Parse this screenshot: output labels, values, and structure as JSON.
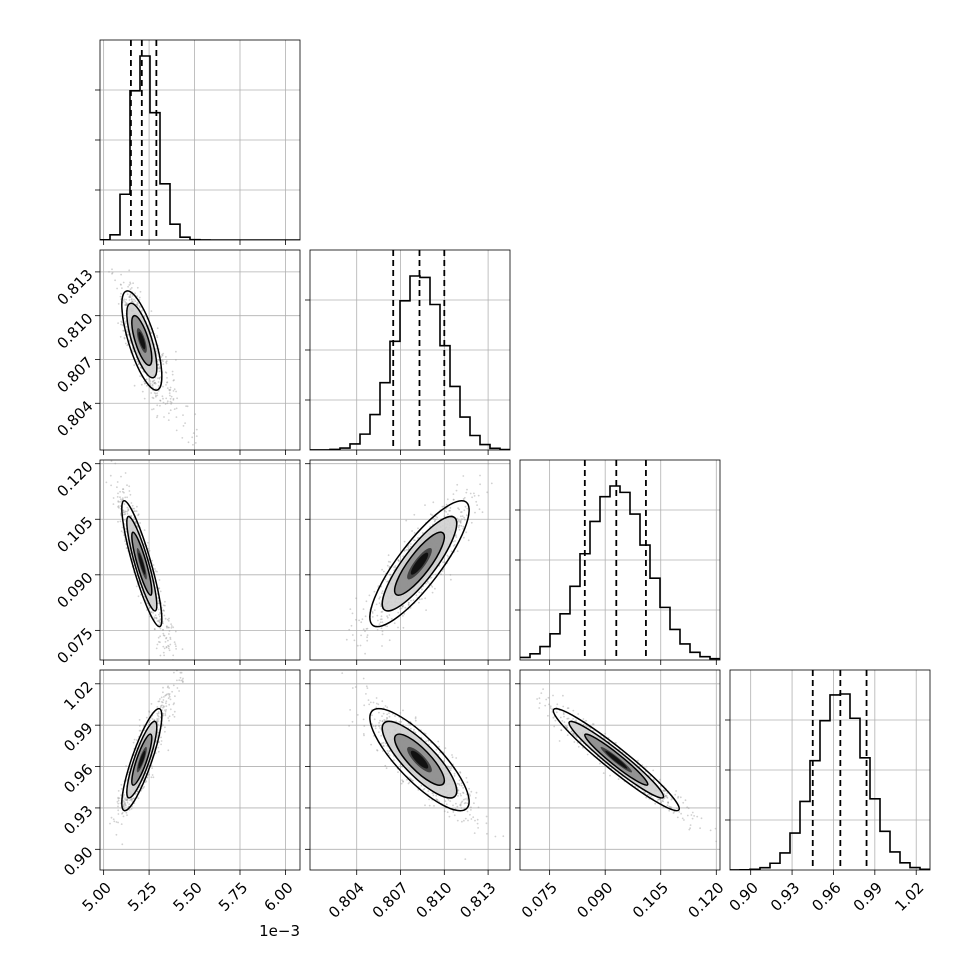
{
  "chart_data": {
    "type": "corner",
    "title": "",
    "parameters": [
      {
        "id": "p0",
        "label": "",
        "range": [
          4.98,
          6.08
        ],
        "ticks": [
          "5.00",
          "5.25",
          "5.50",
          "5.75",
          "6.00"
        ],
        "tick_values": [
          5.0,
          5.25,
          5.5,
          5.75,
          6.0
        ],
        "offset_text": "1e−3",
        "mean": 5.21,
        "sd": 0.055,
        "quantiles": [
          5.15,
          5.21,
          5.29
        ],
        "hist_peak": 0.92
      },
      {
        "id": "p1",
        "label": "",
        "range": [
          0.8008,
          0.8145
        ],
        "ticks": [
          "0.804",
          "0.807",
          "0.810",
          "0.813"
        ],
        "tick_values": [
          0.804,
          0.807,
          0.81,
          0.813
        ],
        "offset_text": "",
        "mean": 0.8083,
        "sd": 0.0017,
        "quantiles": [
          0.8065,
          0.8083,
          0.81
        ],
        "hist_peak": 0.87
      },
      {
        "id": "p2",
        "label": "",
        "range": [
          0.067,
          0.121
        ],
        "ticks": [
          "0.075",
          "0.090",
          "0.105",
          "0.120"
        ],
        "tick_values": [
          0.075,
          0.09,
          0.105,
          0.12
        ],
        "offset_text": "",
        "mean": 0.093,
        "sd": 0.0085,
        "quantiles": [
          0.0845,
          0.093,
          0.101
        ],
        "hist_peak": 0.87
      },
      {
        "id": "p3",
        "label": "",
        "range": [
          0.885,
          1.03
        ],
        "ticks": [
          "0.90",
          "0.93",
          "0.96",
          "0.99",
          "1.02"
        ],
        "tick_values": [
          0.9,
          0.93,
          0.96,
          0.99,
          1.02
        ],
        "offset_text": "",
        "mean": 0.965,
        "sd": 0.0185,
        "quantiles": [
          0.945,
          0.965,
          0.984
        ],
        "hist_peak": 0.88
      }
    ],
    "histogram_bins": 20,
    "histogram_tick_fractions": [
      0.25,
      0.5,
      0.75
    ],
    "correlations": [
      {
        "i": 1,
        "j": 0,
        "rho": -0.72
      },
      {
        "i": 2,
        "j": 0,
        "rho": -0.88
      },
      {
        "i": 2,
        "j": 1,
        "rho": 0.85
      },
      {
        "i": 3,
        "j": 0,
        "rho": 0.85
      },
      {
        "i": 3,
        "j": 1,
        "rho": -0.82
      },
      {
        "i": 3,
        "j": 2,
        "rho": -0.96
      }
    ],
    "contour_levels_sigma": [
      0.5,
      1.0,
      1.5,
      2.0
    ],
    "grid": true,
    "legend": "none",
    "colors": {
      "line": "#000000",
      "points": "#9a9a9a",
      "density": [
        "#cfcfcf",
        "#8c8c8c",
        "#3a3a3a"
      ],
      "grid": "#b0b0b0"
    }
  }
}
